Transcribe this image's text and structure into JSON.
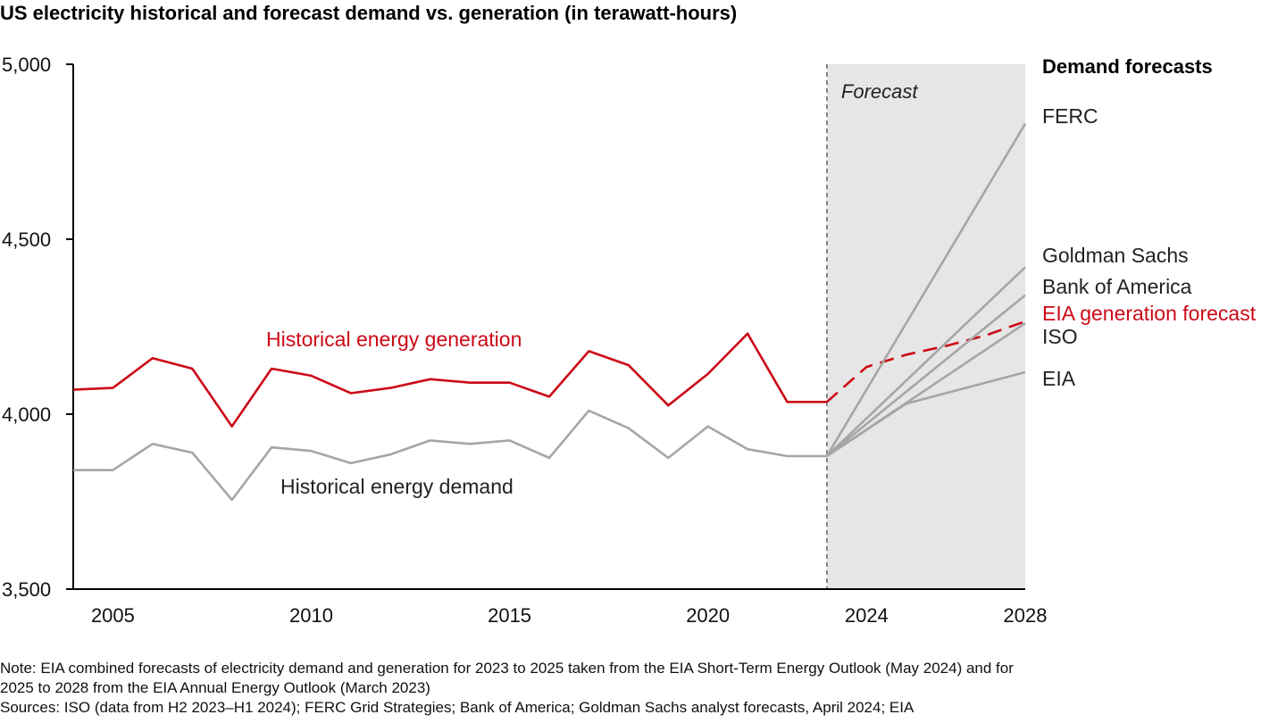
{
  "title": "US electricity historical and forecast demand vs. generation (in terawatt-hours)",
  "note_line1": "Note: EIA combined forecasts of electricity demand and generation for 2023 to 2025 taken from the EIA Short-Term Energy Outlook (May 2024) and for",
  "note_line2": "2025 to 2028 from the EIA Annual Energy Outlook (March 2023)",
  "sources": "Sources: ISO (data from H2 2023–H1 2024); FERC Grid Strategies; Bank of America; Goldman Sachs analyst forecasts, April 2024; EIA",
  "colors": {
    "generation": "#cc0a17",
    "demand": "#a6a6a6",
    "forecast_shade": "#e6e6e6",
    "axis": "#000000",
    "divider": "#666666"
  },
  "chart_data": {
    "type": "line",
    "title": "US electricity historical and forecast demand vs. generation (in terawatt-hours)",
    "ylim": [
      3500,
      5000
    ],
    "y_ticks": [
      {
        "value": 3500,
        "label": "3,500"
      },
      {
        "value": 4000,
        "label": "4,000"
      },
      {
        "value": 4500,
        "label": "4,500"
      },
      {
        "value": 5000,
        "label": "5,000"
      }
    ],
    "x_ticks": [
      {
        "value": 2005,
        "label": "2005"
      },
      {
        "value": 2010,
        "label": "2010"
      },
      {
        "value": 2015,
        "label": "2015"
      },
      {
        "value": 2020,
        "label": "2020"
      },
      {
        "value": 2024,
        "label": "2024"
      },
      {
        "value": 2028,
        "label": "2028"
      }
    ],
    "forecast_start": 2023,
    "forecast_end": 2028,
    "forecast_label": "Forecast",
    "legend_title": "Demand forecasts",
    "grid": false,
    "series": [
      {
        "name": "Historical energy generation",
        "role": "generation",
        "style": "solid",
        "x": [
          2004,
          2005,
          2006,
          2007,
          2008,
          2009,
          2010,
          2011,
          2012,
          2013,
          2014,
          2015,
          2016,
          2017,
          2018,
          2019,
          2020,
          2021,
          2022,
          2023
        ],
        "y": [
          4070,
          4075,
          4160,
          4130,
          3965,
          4130,
          4110,
          4060,
          4075,
          4100,
          4090,
          4090,
          4050,
          4180,
          4140,
          4025,
          4115,
          4230,
          4035,
          4035
        ]
      },
      {
        "name": "Historical energy demand",
        "role": "demand",
        "style": "solid",
        "x": [
          2004,
          2005,
          2006,
          2007,
          2008,
          2009,
          2010,
          2011,
          2012,
          2013,
          2014,
          2015,
          2016,
          2017,
          2018,
          2019,
          2020,
          2021,
          2022,
          2023
        ],
        "y": [
          3840,
          3840,
          3915,
          3890,
          3755,
          3905,
          3895,
          3860,
          3885,
          3925,
          3915,
          3925,
          3875,
          4010,
          3960,
          3875,
          3965,
          3900,
          3880,
          3880
        ]
      },
      {
        "name": "EIA generation forecast",
        "role": "generation",
        "style": "dashed",
        "x": [
          2023,
          2024,
          2025,
          2026,
          2027,
          2028
        ],
        "y": [
          4035,
          4135,
          4170,
          4195,
          4225,
          4265
        ]
      },
      {
        "name": "FERC",
        "role": "demand",
        "style": "solid",
        "x": [
          2023,
          2028
        ],
        "y": [
          3880,
          4830
        ]
      },
      {
        "name": "Goldman Sachs",
        "role": "demand",
        "style": "solid",
        "x": [
          2023,
          2028
        ],
        "y": [
          3880,
          4420
        ]
      },
      {
        "name": "Bank of America",
        "role": "demand",
        "style": "solid",
        "x": [
          2023,
          2028
        ],
        "y": [
          3880,
          4340
        ]
      },
      {
        "name": "ISO",
        "role": "demand",
        "style": "solid",
        "x": [
          2023,
          2028
        ],
        "y": [
          3880,
          4260
        ]
      },
      {
        "name": "EIA",
        "role": "demand",
        "style": "solid",
        "x": [
          2023,
          2025,
          2028
        ],
        "y": [
          3880,
          4030,
          4120
        ]
      }
    ]
  }
}
